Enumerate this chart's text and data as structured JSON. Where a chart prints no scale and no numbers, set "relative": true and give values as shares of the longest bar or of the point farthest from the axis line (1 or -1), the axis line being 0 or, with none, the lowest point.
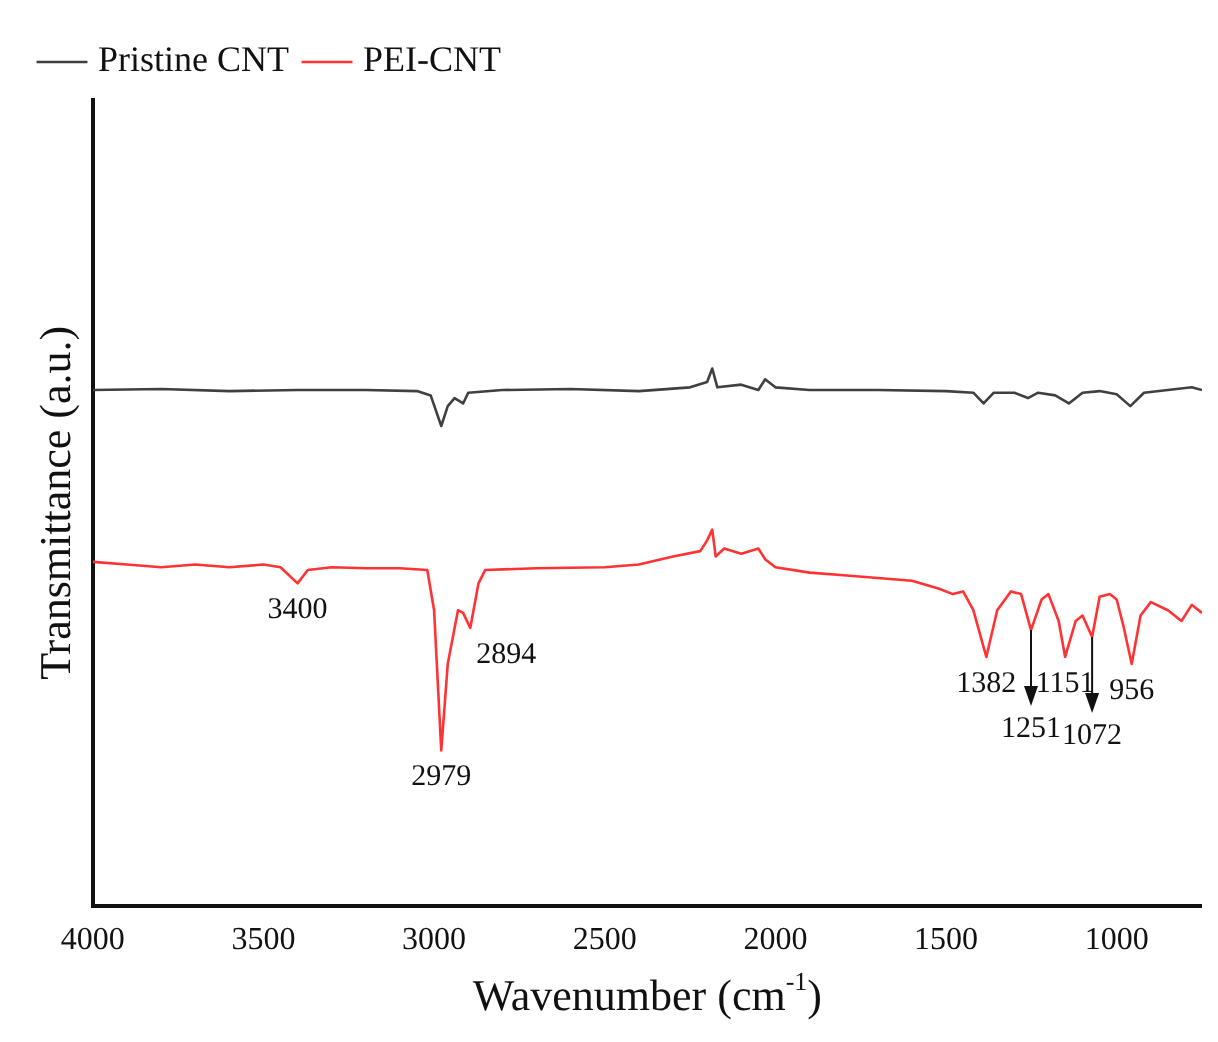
{
  "chart_data": {
    "type": "line",
    "relative": true,
    "xlabel": "Wavenumber (cm$^{-1}$)",
    "ylabel": "Transmittance (a.u.)",
    "xlim": [
      4000,
      750
    ],
    "xticks": [
      4000,
      3500,
      3000,
      2500,
      2000,
      1500,
      1000
    ],
    "legend": "top left",
    "grid": false,
    "marker": "none",
    "line_style": "solid",
    "series": [
      {
        "name": "Pristine CNT",
        "color": "#404040",
        "x": [
          4000,
          3800,
          3600,
          3400,
          3200,
          3050,
          3010,
          2979,
          2960,
          2940,
          2915,
          2900,
          2800,
          2600,
          2400,
          2250,
          2200,
          2185,
          2170,
          2100,
          2050,
          2030,
          2000,
          1900,
          1700,
          1500,
          1420,
          1390,
          1360,
          1300,
          1260,
          1230,
          1180,
          1140,
          1100,
          1050,
          1000,
          960,
          920,
          850,
          780,
          750
        ],
        "values": [
          0.96,
          0.962,
          0.958,
          0.96,
          0.96,
          0.958,
          0.95,
          0.893,
          0.93,
          0.945,
          0.935,
          0.955,
          0.96,
          0.962,
          0.958,
          0.965,
          0.975,
          1,
          0.965,
          0.97,
          0.96,
          0.98,
          0.965,
          0.96,
          0.96,
          0.958,
          0.955,
          0.935,
          0.955,
          0.955,
          0.945,
          0.955,
          0.95,
          0.935,
          0.955,
          0.958,
          0.952,
          0.93,
          0.955,
          0.96,
          0.965,
          0.96
        ]
      },
      {
        "name": "PEI-CNT",
        "color": "#ff3333",
        "x": [
          4000,
          3900,
          3800,
          3700,
          3600,
          3500,
          3450,
          3400,
          3370,
          3300,
          3200,
          3100,
          3020,
          3000,
          2979,
          2960,
          2930,
          2915,
          2894,
          2870,
          2850,
          2700,
          2500,
          2400,
          2300,
          2220,
          2200,
          2185,
          2175,
          2150,
          2100,
          2050,
          2030,
          2000,
          1900,
          1800,
          1700,
          1600,
          1520,
          1480,
          1450,
          1420,
          1382,
          1350,
          1310,
          1280,
          1251,
          1220,
          1200,
          1170,
          1151,
          1120,
          1100,
          1072,
          1050,
          1020,
          1000,
          980,
          956,
          930,
          900,
          850,
          810,
          780,
          750
        ],
        "values": [
          0.64,
          0.635,
          0.63,
          0.635,
          0.63,
          0.635,
          0.63,
          0.6,
          0.625,
          0.63,
          0.628,
          0.628,
          0.625,
          0.55,
          0.289,
          0.45,
          0.55,
          0.545,
          0.517,
          0.6,
          0.625,
          0.628,
          0.63,
          0.635,
          0.65,
          0.66,
          0.68,
          0.7,
          0.65,
          0.665,
          0.655,
          0.665,
          0.645,
          0.63,
          0.62,
          0.615,
          0.61,
          0.605,
          0.59,
          0.58,
          0.585,
          0.55,
          0.463,
          0.55,
          0.585,
          0.58,
          0.513,
          0.57,
          0.58,
          0.53,
          0.463,
          0.53,
          0.54,
          0.5,
          0.575,
          0.58,
          0.57,
          0.52,
          0.45,
          0.54,
          0.565,
          0.55,
          0.53,
          0.56,
          0.545
        ]
      }
    ],
    "annotations": [
      {
        "text": "3400",
        "x": 3400,
        "y": 0.6
      },
      {
        "text": "2979",
        "x": 2979,
        "y": 0.289
      },
      {
        "text": "2894",
        "x": 2894,
        "y": 0.517
      },
      {
        "text": "1382",
        "x": 1382,
        "y": 0.463
      },
      {
        "text": "1251",
        "x": 1251,
        "y": 0.513
      },
      {
        "text": "1151",
        "x": 1151,
        "y": 0.463
      },
      {
        "text": "1072",
        "x": 1072,
        "y": 0.5
      },
      {
        "text": "956",
        "x": 956,
        "y": 0.45
      }
    ]
  }
}
